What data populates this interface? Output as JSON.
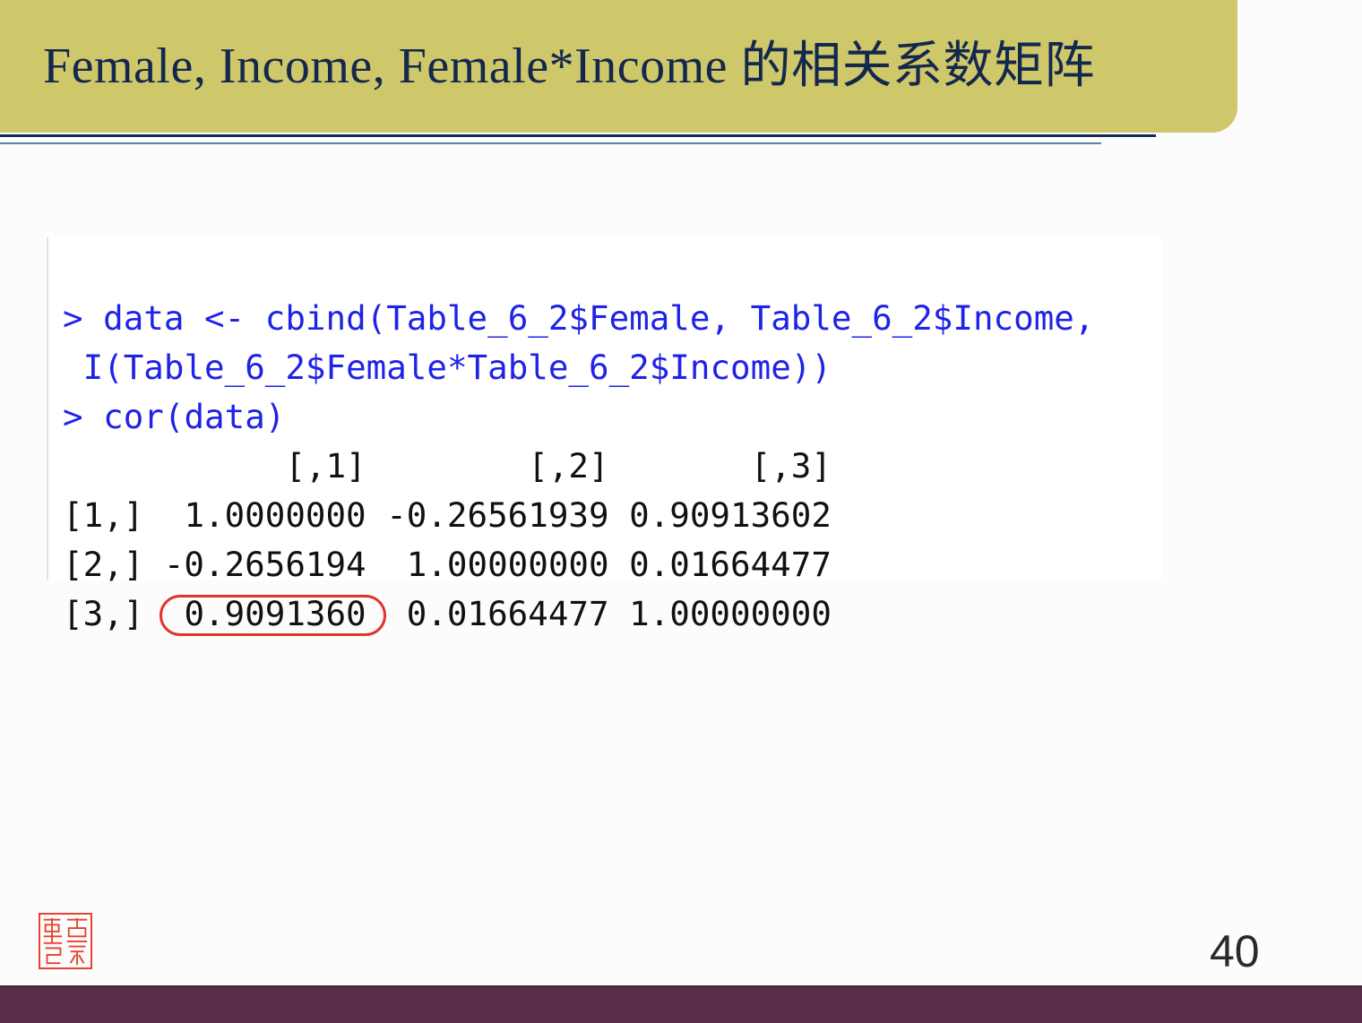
{
  "slide": {
    "title": "Female, Income, Female*Income 的相关系数矩阵",
    "page_number": "40",
    "colors": {
      "title_bg": "#cfc86a",
      "title_text": "#14284e",
      "footer": "#5a2e48",
      "command": "#1f23e6",
      "highlight": "#e0352b"
    }
  },
  "console": {
    "commands": [
      "> data <- cbind(Table_6_2$Female, Table_6_2$Income,",
      " I(Table_6_2$Female*Table_6_2$Income))",
      "> cor(data)"
    ],
    "matrix": {
      "col_headers": [
        "[,1]",
        "[,2]",
        "[,3]"
      ],
      "rows": [
        {
          "label": "[1,]",
          "values": [
            "1.0000000",
            "-0.26561939",
            "0.90913602"
          ]
        },
        {
          "label": "[2,]",
          "values": [
            "-0.2656194",
            "1.00000000",
            "0.01664477"
          ]
        },
        {
          "label": "[3,]",
          "values": [
            "0.9091360",
            "0.01664477",
            "1.00000000"
          ]
        }
      ],
      "highlighted_cell": "0.9091360"
    }
  }
}
